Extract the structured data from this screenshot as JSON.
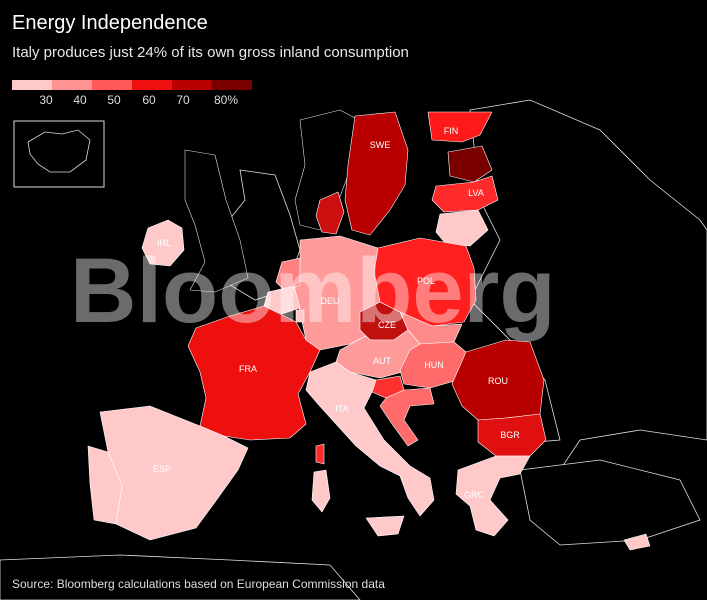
{
  "title": "Energy Independence",
  "subtitle": "Italy produces just 24% of its own gross inland consumption",
  "legend": {
    "colors": [
      "#ffc9c9",
      "#ff9393",
      "#ff5a5a",
      "#ee0f0f",
      "#b80000",
      "#7a0000"
    ],
    "ticks": [
      "30",
      "40",
      "50",
      "60",
      "70",
      "80%"
    ]
  },
  "watermark": "Bloomberg",
  "source": "Source: Bloomberg calculations based on European Commission data",
  "countries": [
    {
      "code": "FIN",
      "label": "FIN",
      "color": "#ff1a1a"
    },
    {
      "code": "SWE",
      "label": "SWE",
      "color": "#b80000"
    },
    {
      "code": "NOR",
      "label": "",
      "color": "#000000"
    },
    {
      "code": "EST",
      "label": "",
      "color": "#7a0000"
    },
    {
      "code": "LVA",
      "label": "LVA",
      "color": "#ff2a2a"
    },
    {
      "code": "LTU",
      "label": "",
      "color": "#ffc9c9"
    },
    {
      "code": "DNK",
      "label": "",
      "color": "#cc1010"
    },
    {
      "code": "IRL",
      "label": "IRL",
      "color": "#ffc9c9"
    },
    {
      "code": "GBR",
      "label": "",
      "color": "#000000"
    },
    {
      "code": "POL",
      "label": "POL",
      "color": "#ff1f1f"
    },
    {
      "code": "DEU",
      "label": "DEU",
      "color": "#ff9a9a"
    },
    {
      "code": "NLD",
      "label": "",
      "color": "#ff8080"
    },
    {
      "code": "BEL",
      "label": "",
      "color": "#ffc9c9"
    },
    {
      "code": "LUX",
      "label": "",
      "color": "#ffc9c9"
    },
    {
      "code": "CZE",
      "label": "CZE",
      "color": "#c01010"
    },
    {
      "code": "SVK",
      "label": "",
      "color": "#ff8a8a"
    },
    {
      "code": "AUT",
      "label": "AUT",
      "color": "#ff9a9a"
    },
    {
      "code": "HUN",
      "label": "HUN",
      "color": "#ff6a6a"
    },
    {
      "code": "SVN",
      "label": "",
      "color": "#ff3030"
    },
    {
      "code": "HRV",
      "label": "",
      "color": "#ff6a6a"
    },
    {
      "code": "ROU",
      "label": "ROU",
      "color": "#b80000"
    },
    {
      "code": "BGR",
      "label": "BGR",
      "color": "#e01010"
    },
    {
      "code": "FRA",
      "label": "FRA",
      "color": "#ee0f0f"
    },
    {
      "code": "ITA",
      "label": "ITA",
      "color": "#ffc9c9"
    },
    {
      "code": "ESP",
      "label": "ESP",
      "color": "#ffc9c9"
    },
    {
      "code": "PRT",
      "label": "",
      "color": "#ffc9c9"
    },
    {
      "code": "GRC",
      "label": "GRC",
      "color": "#ffc9c9"
    },
    {
      "code": "CYP",
      "label": "",
      "color": "#ffc9c9"
    },
    {
      "code": "COR",
      "label": "",
      "color": "#ff2a2a"
    },
    {
      "code": "SAR",
      "label": "",
      "color": "#ffc9c9"
    },
    {
      "code": "SIC",
      "label": "",
      "color": "#ffc9c9"
    }
  ]
}
